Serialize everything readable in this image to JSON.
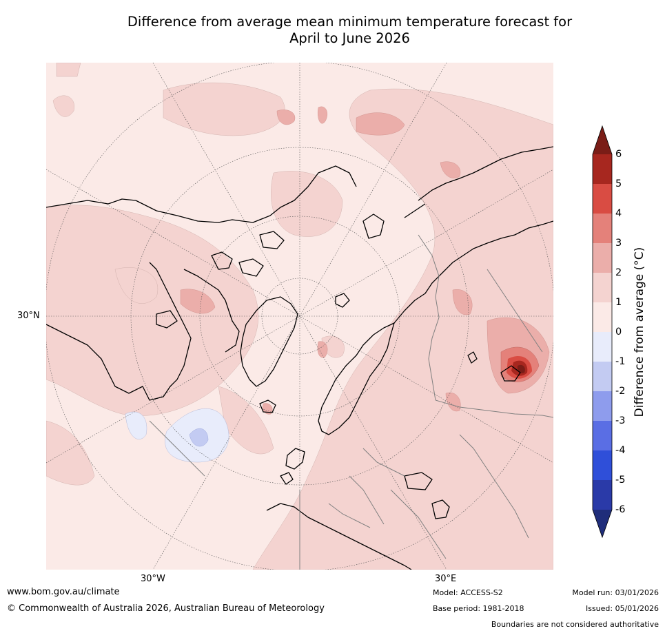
{
  "title": {
    "line1": "Difference from average mean minimum temperature forecast for",
    "line2": "April to June 2026"
  },
  "map": {
    "projection": "north-polar",
    "lat_label": "30°N",
    "lon_labels": [
      "30°W",
      "30°E"
    ],
    "colors": {
      "plus_0_1": "#fbeae7",
      "plus_1_2": "#f4d3d0",
      "plus_2_3": "#ebaeaa",
      "plus_3_4": "#e4817a",
      "plus_4_5": "#d94c43",
      "plus_5_6": "#a7271f",
      "minus_0_1": "#e8ecfb",
      "minus_1_2": "#c3cbf2",
      "ocean_base": "#fbeae7",
      "coast": "#000000",
      "borders": "#808080"
    }
  },
  "colorbar": {
    "label": "Difference from average (°C)",
    "ticks": [
      "6",
      "5",
      "4",
      "3",
      "2",
      "1",
      "0",
      "-1",
      "-2",
      "-3",
      "-4",
      "-5",
      "-6"
    ],
    "bins": [
      {
        "range": "above 6",
        "color": "#7a1d17"
      },
      {
        "range": "5 to 6",
        "color": "#a7271f"
      },
      {
        "range": "4 to 5",
        "color": "#d94c43"
      },
      {
        "range": "3 to 4",
        "color": "#e4817a"
      },
      {
        "range": "2 to 3",
        "color": "#ebaeaa"
      },
      {
        "range": "1 to 2",
        "color": "#f4d3d0"
      },
      {
        "range": "0 to 1",
        "color": "#fbeae7"
      },
      {
        "range": "-1 to 0",
        "color": "#e8ecfb"
      },
      {
        "range": "-2 to -1",
        "color": "#c3cbf2"
      },
      {
        "range": "-3 to -2",
        "color": "#8e9ced"
      },
      {
        "range": "-4 to -3",
        "color": "#5a6ee4"
      },
      {
        "range": "-5 to -4",
        "color": "#2f4fd9"
      },
      {
        "range": "-6 to -5",
        "color": "#2a3aa8"
      },
      {
        "range": "below -6",
        "color": "#1f2d7a"
      }
    ]
  },
  "footer": {
    "website": "www.bom.gov.au/climate",
    "copyright": "© Commonwealth of Australia 2026, Australian Bureau of Meteorology",
    "model": "Model: ACCESS-S2",
    "base_period": "Base period: 1981-2018",
    "model_run": "Model run: 03/01/2026",
    "issued": "Issued: 05/01/2026",
    "disclaimer": "Boundaries are not considered authoritative"
  }
}
